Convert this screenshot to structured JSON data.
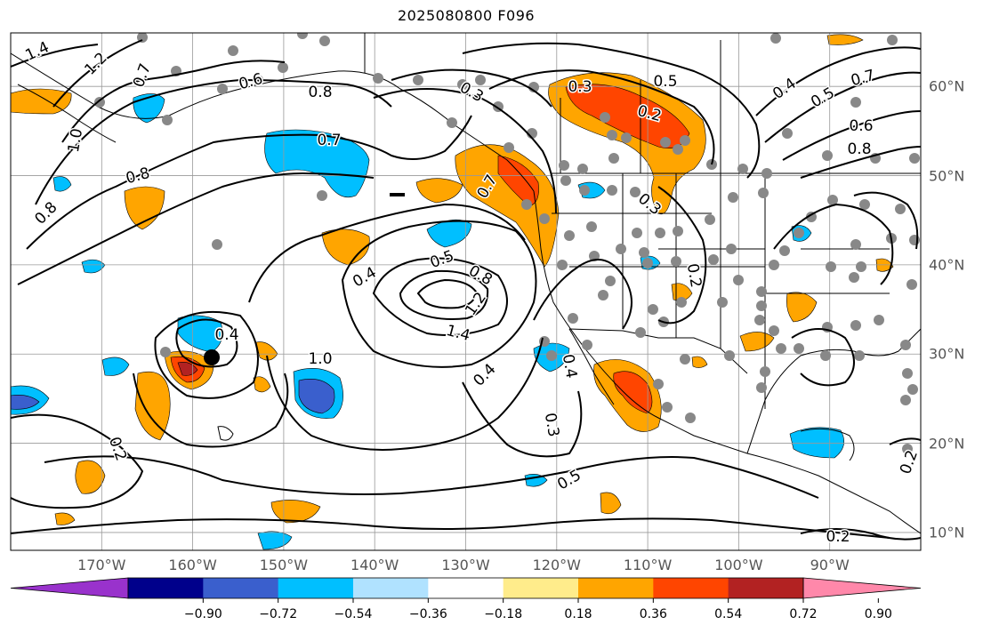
{
  "title": "2025080800 F096",
  "map": {
    "lon_labels": [
      "170°W",
      "160°W",
      "150°W",
      "140°W",
      "130°W",
      "120°W",
      "110°W",
      "100°W",
      "90°W"
    ],
    "lat_labels": [
      "60°N",
      "50°N",
      "40°N",
      "30°N",
      "20°N",
      "10°N"
    ],
    "lon_values": [
      -170,
      -160,
      -150,
      -140,
      -130,
      -120,
      -110,
      -100,
      -90
    ],
    "lat_values": [
      60,
      50,
      40,
      30,
      20,
      10
    ],
    "lon_range": [
      -180,
      -80
    ],
    "lat_range": [
      8,
      66
    ],
    "contour_labels": [
      "1.4",
      "1.2",
      "0.7",
      "1.0",
      "0.6",
      "0.8",
      "0.8",
      "0.7",
      "0.8",
      "0.7",
      "0.3",
      "0.3",
      "0.5",
      "0.2",
      "0.4",
      "0.5",
      "0.7",
      "0.6",
      "0.8",
      "0.4",
      "0.5",
      "0.8",
      "1.2",
      "1.4",
      "1.0",
      "0.4",
      "0.4",
      "0.3",
      "0.5",
      "0.2",
      "0.2",
      "0.3",
      "0.4",
      "0.2",
      "0.2"
    ],
    "gridlines": true
  },
  "colorbar": {
    "ticks": [
      "−0.90",
      "−0.72",
      "−0.54",
      "−0.36",
      "−0.18",
      "0.18",
      "0.36",
      "0.54",
      "0.72",
      "0.90"
    ],
    "colors": [
      "#9932cc",
      "#00008b",
      "#3a5fcd",
      "#00bfff",
      "#b0e2ff",
      "#ffffff",
      "#ffec8b",
      "#ffa500",
      "#ff4500",
      "#b22222",
      "#ff88aa"
    ],
    "extend": "both"
  },
  "colors": {
    "orange": "#ffa500",
    "red": "#ff4500",
    "darkred": "#b22222",
    "blue": "#00bfff",
    "royal": "#3a5fcd",
    "dot": "#888888"
  }
}
